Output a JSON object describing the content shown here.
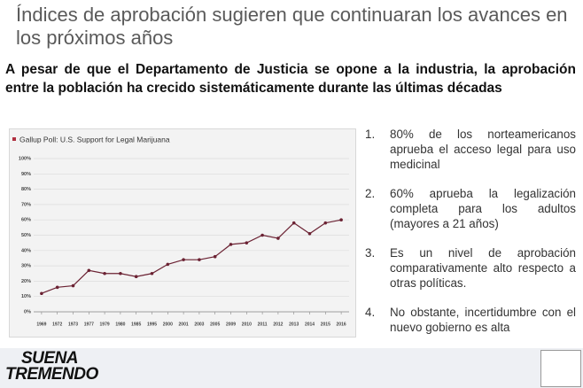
{
  "header": {
    "title": "Índices de aprobación sugieren que continuaran los avances en los próximos años"
  },
  "subtitle": "A pesar de que el Departamento de Justicia se opone a la industria, la aprobación entre la población ha crecido sistemáticamente durante las últimas décadas",
  "chart_data": {
    "type": "line",
    "title": "Gallup Poll: U.S. Support for Legal Marijuana",
    "categories": [
      "1969",
      "1972",
      "1973",
      "1977",
      "1979",
      "1980",
      "1985",
      "1995",
      "2000",
      "2001",
      "2003",
      "2005",
      "2009",
      "2010",
      "2011",
      "2012",
      "2013",
      "2014",
      "2015",
      "2016"
    ],
    "values": [
      12,
      16,
      17,
      27,
      25,
      25,
      23,
      25,
      31,
      34,
      34,
      36,
      44,
      45,
      50,
      48,
      58,
      51,
      58,
      60
    ],
    "color": "#6b2233",
    "ylim": [
      0,
      100
    ],
    "yticks": [
      {
        "value": 0,
        "label": "0%"
      },
      {
        "value": 10,
        "label": "10%"
      },
      {
        "value": 20,
        "label": "20%"
      },
      {
        "value": 30,
        "label": "30%"
      },
      {
        "value": 40,
        "label": "40%"
      },
      {
        "value": 50,
        "label": "50%"
      },
      {
        "value": 60,
        "label": "60%"
      },
      {
        "value": 70,
        "label": "70%"
      },
      {
        "value": 80,
        "label": "80%"
      },
      {
        "value": 90,
        "label": "90%"
      },
      {
        "value": 100,
        "label": "100%"
      }
    ],
    "grid": true
  },
  "list": [
    {
      "number": "1.",
      "text": "80% de los norteamericanos aprueba el acceso legal para uso medicinal"
    },
    {
      "number": "2.",
      "text": "60% aprueba la legalización completa para los adultos (mayores a 21 años)"
    },
    {
      "number": "3.",
      "text": "Es un nivel de aprobación comparativamente alto respecto a otras políticas."
    },
    {
      "number": "4.",
      "text": "No obstante, incertidumbre con el nuevo gobierno es alta"
    }
  ],
  "footer": {
    "logo_line1": "SUENA",
    "logo_line2": "TREMENDO"
  }
}
